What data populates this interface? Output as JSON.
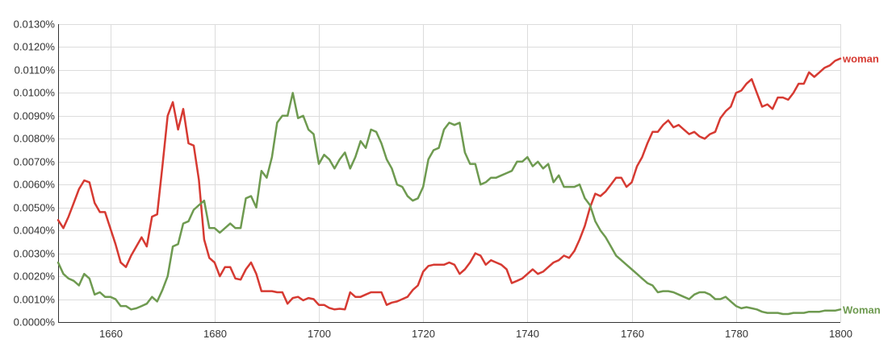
{
  "chart_data": {
    "type": "line",
    "title": "",
    "xlabel": "",
    "ylabel": "",
    "xlim": [
      1650,
      1800
    ],
    "ylim": [
      0,
      0.013
    ],
    "x_ticks": [
      1660,
      1680,
      1700,
      1720,
      1740,
      1760,
      1780,
      1800
    ],
    "x_tick_labels": [
      "1660",
      "1680",
      "1700",
      "1720",
      "1740",
      "1760",
      "1780",
      "1800"
    ],
    "y_ticks": [
      0,
      0.001,
      0.002,
      0.003,
      0.004,
      0.005,
      0.006,
      0.007,
      0.008,
      0.009,
      0.01,
      0.011,
      0.012,
      0.013
    ],
    "y_tick_labels": [
      "0.0000%",
      "0.0010%",
      "0.0020%",
      "0.0030%",
      "0.0040%",
      "0.0050%",
      "0.0060%",
      "0.0070%",
      "0.0080%",
      "0.0090%",
      "0.0100%",
      "0.0110%",
      "0.0120%",
      "0.0130%"
    ],
    "grid": true,
    "legend_placement": "right, at end of each line",
    "series": [
      {
        "name": "woman",
        "color": "#d63a32",
        "x": [
          1650,
          1651,
          1652,
          1653,
          1654,
          1655,
          1656,
          1657,
          1658,
          1659,
          1660,
          1661,
          1662,
          1663,
          1664,
          1665,
          1666,
          1667,
          1668,
          1669,
          1670,
          1671,
          1672,
          1673,
          1674,
          1675,
          1676,
          1677,
          1678,
          1679,
          1680,
          1681,
          1682,
          1683,
          1684,
          1685,
          1686,
          1687,
          1688,
          1689,
          1690,
          1691,
          1692,
          1693,
          1694,
          1695,
          1696,
          1697,
          1698,
          1699,
          1700,
          1701,
          1702,
          1703,
          1704,
          1705,
          1706,
          1707,
          1708,
          1709,
          1710,
          1711,
          1712,
          1713,
          1714,
          1715,
          1716,
          1717,
          1718,
          1719,
          1720,
          1721,
          1722,
          1723,
          1724,
          1725,
          1726,
          1727,
          1728,
          1729,
          1730,
          1731,
          1732,
          1733,
          1734,
          1735,
          1736,
          1737,
          1738,
          1739,
          1740,
          1741,
          1742,
          1743,
          1744,
          1745,
          1746,
          1747,
          1748,
          1749,
          1750,
          1751,
          1752,
          1753,
          1754,
          1755,
          1756,
          1757,
          1758,
          1759,
          1760,
          1761,
          1762,
          1763,
          1764,
          1765,
          1766,
          1767,
          1768,
          1769,
          1770,
          1771,
          1772,
          1773,
          1774,
          1775,
          1776,
          1777,
          1778,
          1779,
          1780,
          1781,
          1782,
          1783,
          1784,
          1785,
          1786,
          1787,
          1788,
          1789,
          1790,
          1791,
          1792,
          1793,
          1794,
          1795,
          1796,
          1797,
          1798,
          1799,
          1800
        ],
        "y": [
          0.00445,
          0.0041,
          0.0046,
          0.0052,
          0.0058,
          0.00618,
          0.0061,
          0.0052,
          0.0048,
          0.0048,
          0.0041,
          0.0034,
          0.0026,
          0.0024,
          0.0029,
          0.0033,
          0.0037,
          0.0033,
          0.0046,
          0.0047,
          0.0068,
          0.009,
          0.0096,
          0.0084,
          0.0093,
          0.0078,
          0.0077,
          0.0062,
          0.0036,
          0.0028,
          0.0026,
          0.002,
          0.0024,
          0.0024,
          0.0019,
          0.00185,
          0.0023,
          0.0026,
          0.0021,
          0.00135,
          0.00135,
          0.00135,
          0.0013,
          0.0013,
          0.0008,
          0.00105,
          0.0011,
          0.00095,
          0.00105,
          0.001,
          0.00075,
          0.00075,
          0.00062,
          0.00055,
          0.00058,
          0.00055,
          0.0013,
          0.0011,
          0.0011,
          0.0012,
          0.0013,
          0.0013,
          0.0013,
          0.00075,
          0.00085,
          0.0009,
          0.001,
          0.0011,
          0.0014,
          0.0016,
          0.0022,
          0.00245,
          0.0025,
          0.0025,
          0.0025,
          0.0026,
          0.0025,
          0.0021,
          0.0023,
          0.0026,
          0.003,
          0.0029,
          0.0025,
          0.0027,
          0.0026,
          0.0025,
          0.0023,
          0.0017,
          0.0018,
          0.0019,
          0.0021,
          0.0023,
          0.0021,
          0.0022,
          0.0024,
          0.0026,
          0.0027,
          0.0029,
          0.0028,
          0.0031,
          0.0036,
          0.0042,
          0.005,
          0.0056,
          0.0055,
          0.0057,
          0.006,
          0.0063,
          0.0063,
          0.0059,
          0.0061,
          0.0068,
          0.0072,
          0.0078,
          0.0083,
          0.0083,
          0.0086,
          0.0088,
          0.0085,
          0.0086,
          0.0084,
          0.0082,
          0.0083,
          0.0081,
          0.008,
          0.0082,
          0.0083,
          0.0089,
          0.0092,
          0.0094,
          0.01,
          0.0101,
          0.0104,
          0.0106,
          0.01,
          0.0094,
          0.0095,
          0.0093,
          0.0098,
          0.0098,
          0.0097,
          0.01,
          0.0104,
          0.0104,
          0.0109,
          0.0107,
          0.0109,
          0.0111,
          0.0112,
          0.0114,
          0.0115
        ]
      },
      {
        "name": "Woman",
        "color": "#6e9a50",
        "x": [
          1650,
          1651,
          1652,
          1653,
          1654,
          1655,
          1656,
          1657,
          1658,
          1659,
          1660,
          1661,
          1662,
          1663,
          1664,
          1665,
          1666,
          1667,
          1668,
          1669,
          1670,
          1671,
          1672,
          1673,
          1674,
          1675,
          1676,
          1677,
          1678,
          1679,
          1680,
          1681,
          1682,
          1683,
          1684,
          1685,
          1686,
          1687,
          1688,
          1689,
          1690,
          1691,
          1692,
          1693,
          1694,
          1695,
          1696,
          1697,
          1698,
          1699,
          1700,
          1701,
          1702,
          1703,
          1704,
          1705,
          1706,
          1707,
          1708,
          1709,
          1710,
          1711,
          1712,
          1713,
          1714,
          1715,
          1716,
          1717,
          1718,
          1719,
          1720,
          1721,
          1722,
          1723,
          1724,
          1725,
          1726,
          1727,
          1728,
          1729,
          1730,
          1731,
          1732,
          1733,
          1734,
          1735,
          1736,
          1737,
          1738,
          1739,
          1740,
          1741,
          1742,
          1743,
          1744,
          1745,
          1746,
          1747,
          1748,
          1749,
          1750,
          1751,
          1752,
          1753,
          1754,
          1755,
          1756,
          1757,
          1758,
          1759,
          1760,
          1761,
          1762,
          1763,
          1764,
          1765,
          1766,
          1767,
          1768,
          1769,
          1770,
          1771,
          1772,
          1773,
          1774,
          1775,
          1776,
          1777,
          1778,
          1779,
          1780,
          1781,
          1782,
          1783,
          1784,
          1785,
          1786,
          1787,
          1788,
          1789,
          1790,
          1791,
          1792,
          1793,
          1794,
          1795,
          1796,
          1797,
          1798,
          1799,
          1800
        ],
        "y": [
          0.0026,
          0.0021,
          0.0019,
          0.0018,
          0.0016,
          0.0021,
          0.0019,
          0.0012,
          0.0013,
          0.0011,
          0.0011,
          0.001,
          0.0007,
          0.0007,
          0.00055,
          0.0006,
          0.0007,
          0.0008,
          0.0011,
          0.0009,
          0.0014,
          0.002,
          0.0033,
          0.0034,
          0.0043,
          0.0044,
          0.0049,
          0.0051,
          0.0053,
          0.0041,
          0.0041,
          0.0039,
          0.0041,
          0.0043,
          0.0041,
          0.0041,
          0.0054,
          0.0055,
          0.005,
          0.0066,
          0.0063,
          0.0072,
          0.0087,
          0.009,
          0.009,
          0.01,
          0.0089,
          0.009,
          0.0084,
          0.0082,
          0.0069,
          0.0073,
          0.0071,
          0.0067,
          0.0071,
          0.0074,
          0.0067,
          0.0072,
          0.0079,
          0.0076,
          0.0084,
          0.0083,
          0.0078,
          0.0071,
          0.0067,
          0.006,
          0.0059,
          0.0055,
          0.0053,
          0.0054,
          0.0059,
          0.0071,
          0.0075,
          0.0076,
          0.0084,
          0.0087,
          0.0086,
          0.0087,
          0.0074,
          0.0069,
          0.0069,
          0.006,
          0.0061,
          0.0063,
          0.0063,
          0.0064,
          0.0065,
          0.0066,
          0.007,
          0.007,
          0.0072,
          0.0068,
          0.007,
          0.0067,
          0.0069,
          0.0061,
          0.0064,
          0.0059,
          0.0059,
          0.0059,
          0.006,
          0.0054,
          0.0051,
          0.0044,
          0.004,
          0.0037,
          0.0033,
          0.0029,
          0.0027,
          0.0025,
          0.0023,
          0.0021,
          0.0019,
          0.0017,
          0.0016,
          0.0013,
          0.00135,
          0.00135,
          0.0013,
          0.0012,
          0.0011,
          0.001,
          0.0012,
          0.0013,
          0.0013,
          0.0012,
          0.001,
          0.001,
          0.0011,
          0.0009,
          0.0007,
          0.0006,
          0.00065,
          0.0006,
          0.00055,
          0.00045,
          0.0004,
          0.0004,
          0.0004,
          0.00035,
          0.00035,
          0.0004,
          0.0004,
          0.0004,
          0.00045,
          0.00045,
          0.00045,
          0.0005,
          0.0005,
          0.0005,
          0.00055
        ]
      }
    ]
  }
}
